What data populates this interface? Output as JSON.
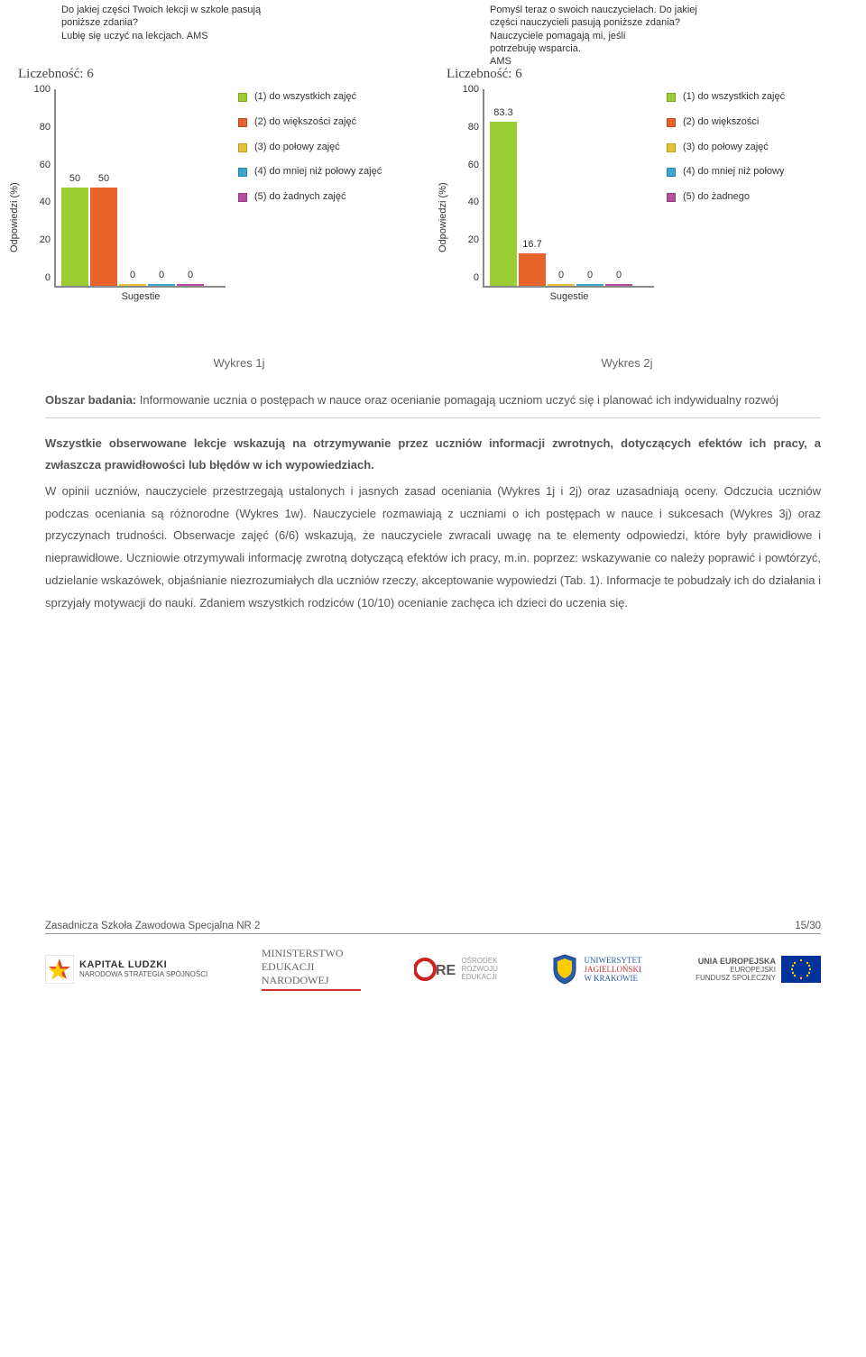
{
  "colors": {
    "series": [
      "#9acd32",
      "#e8622c",
      "#e6c235",
      "#3aa6d0",
      "#b84f9e"
    ],
    "axis": "#888888",
    "text": "#333333"
  },
  "chart1": {
    "question_l1": "Do jakiej części Twoich lekcji w szkole pasują",
    "question_l2": "poniższe zdania?",
    "question_l3": "Lubię się uczyć na lekcjach. AMS",
    "count_label": "Liczebność: 6",
    "y_label": "Odpowiedzi (%)",
    "y_ticks": [
      "100",
      "80",
      "60",
      "40",
      "20",
      "0"
    ],
    "ymax": 100,
    "values": [
      50,
      50,
      0,
      0,
      0
    ],
    "value_labels": [
      "50",
      "50",
      "0",
      "0",
      "0"
    ],
    "x_label": "Sugestie",
    "legend": [
      "(1) do wszystkich zajęć",
      "(2) do większości zajęć",
      "(3) do połowy zajęć",
      "(4) do mniej niż połowy zajęć",
      "(5) do żadnych zajęć"
    ]
  },
  "chart2": {
    "question_l1": "Pomyśl teraz o swoich nauczycielach. Do jakiej",
    "question_l2": "części nauczycieli pasują poniższe zdania?",
    "question_l3": "Nauczyciele pomagają mi, jeśli",
    "question_l4": "potrzebuję wsparcia.",
    "question_l5": "AMS",
    "count_label": "Liczebność: 6",
    "y_label": "Odpowiedzi (%)",
    "y_ticks": [
      "100",
      "80",
      "60",
      "40",
      "20",
      "0"
    ],
    "ymax": 100,
    "values": [
      83.3,
      16.7,
      0,
      0,
      0
    ],
    "value_labels": [
      "83.3",
      "16.7",
      "0",
      "0",
      "0"
    ],
    "x_label": "Sugestie",
    "legend": [
      "(1) do wszystkich zajęć",
      "(2) do większości",
      "(3) do połowy zajęć",
      "(4) do mniej niż połowy",
      "(5) do żadnego"
    ]
  },
  "captions": {
    "c1": "Wykres 1j",
    "c2": "Wykres 2j"
  },
  "text": {
    "title_prefix": "Obszar badania:",
    "title_rest": " Informowanie ucznia o postępach w nauce oraz ocenianie pomagają uczniom uczyć się i planować ich indywidualny rozwój",
    "subhead": "Wszystkie obserwowane lekcje wskazują na otrzymywanie przez uczniów informacji zwrotnych, dotyczących efektów ich pracy, a zwłaszcza prawidłowości lub błędów w ich wypowiedziach.",
    "para": "W opinii uczniów, nauczyciele przestrzegają ustalonych i jasnych zasad oceniania (Wykres 1j i 2j) oraz uzasadniają oceny. Odczucia uczniów podczas oceniania są różnorodne (Wykres 1w). Nauczyciele rozmawiają z uczniami o ich postępach w nauce i sukcesach (Wykres 3j) oraz przyczynach trudności. Obserwacje zajęć (6/6) wskazują, że nauczyciele zwracali uwagę na te elementy odpowiedzi, które były prawidłowe i nieprawidłowe. Uczniowie otrzymywali informację zwrotną dotyczącą efektów ich pracy, m.in. poprzez: wskazywanie co należy poprawić i powtórzyć, udzielanie wskazówek, objaśnianie niezrozumiałych dla uczniów rzeczy, akceptowanie wypowiedzi (Tab. 1). Informacje te pobudzały ich do działania i sprzyjały motywacji do nauki. Zdaniem wszystkich rodziców (10/10) ocenianie zachęca ich dzieci do uczenia się."
  },
  "footer": {
    "left": "Zasadnicza Szkoła Zawodowa Specjalna NR 2",
    "right": "15/30",
    "logo1_l1": "KAPITAŁ LUDZKI",
    "logo1_l2": "NARODOWA STRATEGIA SPÓJNOŚCI",
    "logo2_l1": "MINISTERSTWO",
    "logo2_l2": "EDUKACJI",
    "logo2_l3": "NARODOWEJ",
    "logo3_l1": "OŚRODEK",
    "logo3_l2": "ROZWOJU",
    "logo3_l3": "EDUKACJI",
    "logo4_l1": "UNIWERSYTET",
    "logo4_l2": "JAGIELLOŃSKI",
    "logo4_l3": "W KRAKOWIE",
    "logo5_l1": "UNIA EUROPEJSKA",
    "logo5_l2": "EUROPEJSKI",
    "logo5_l3": "FUNDUSZ SPOŁECZNY"
  }
}
